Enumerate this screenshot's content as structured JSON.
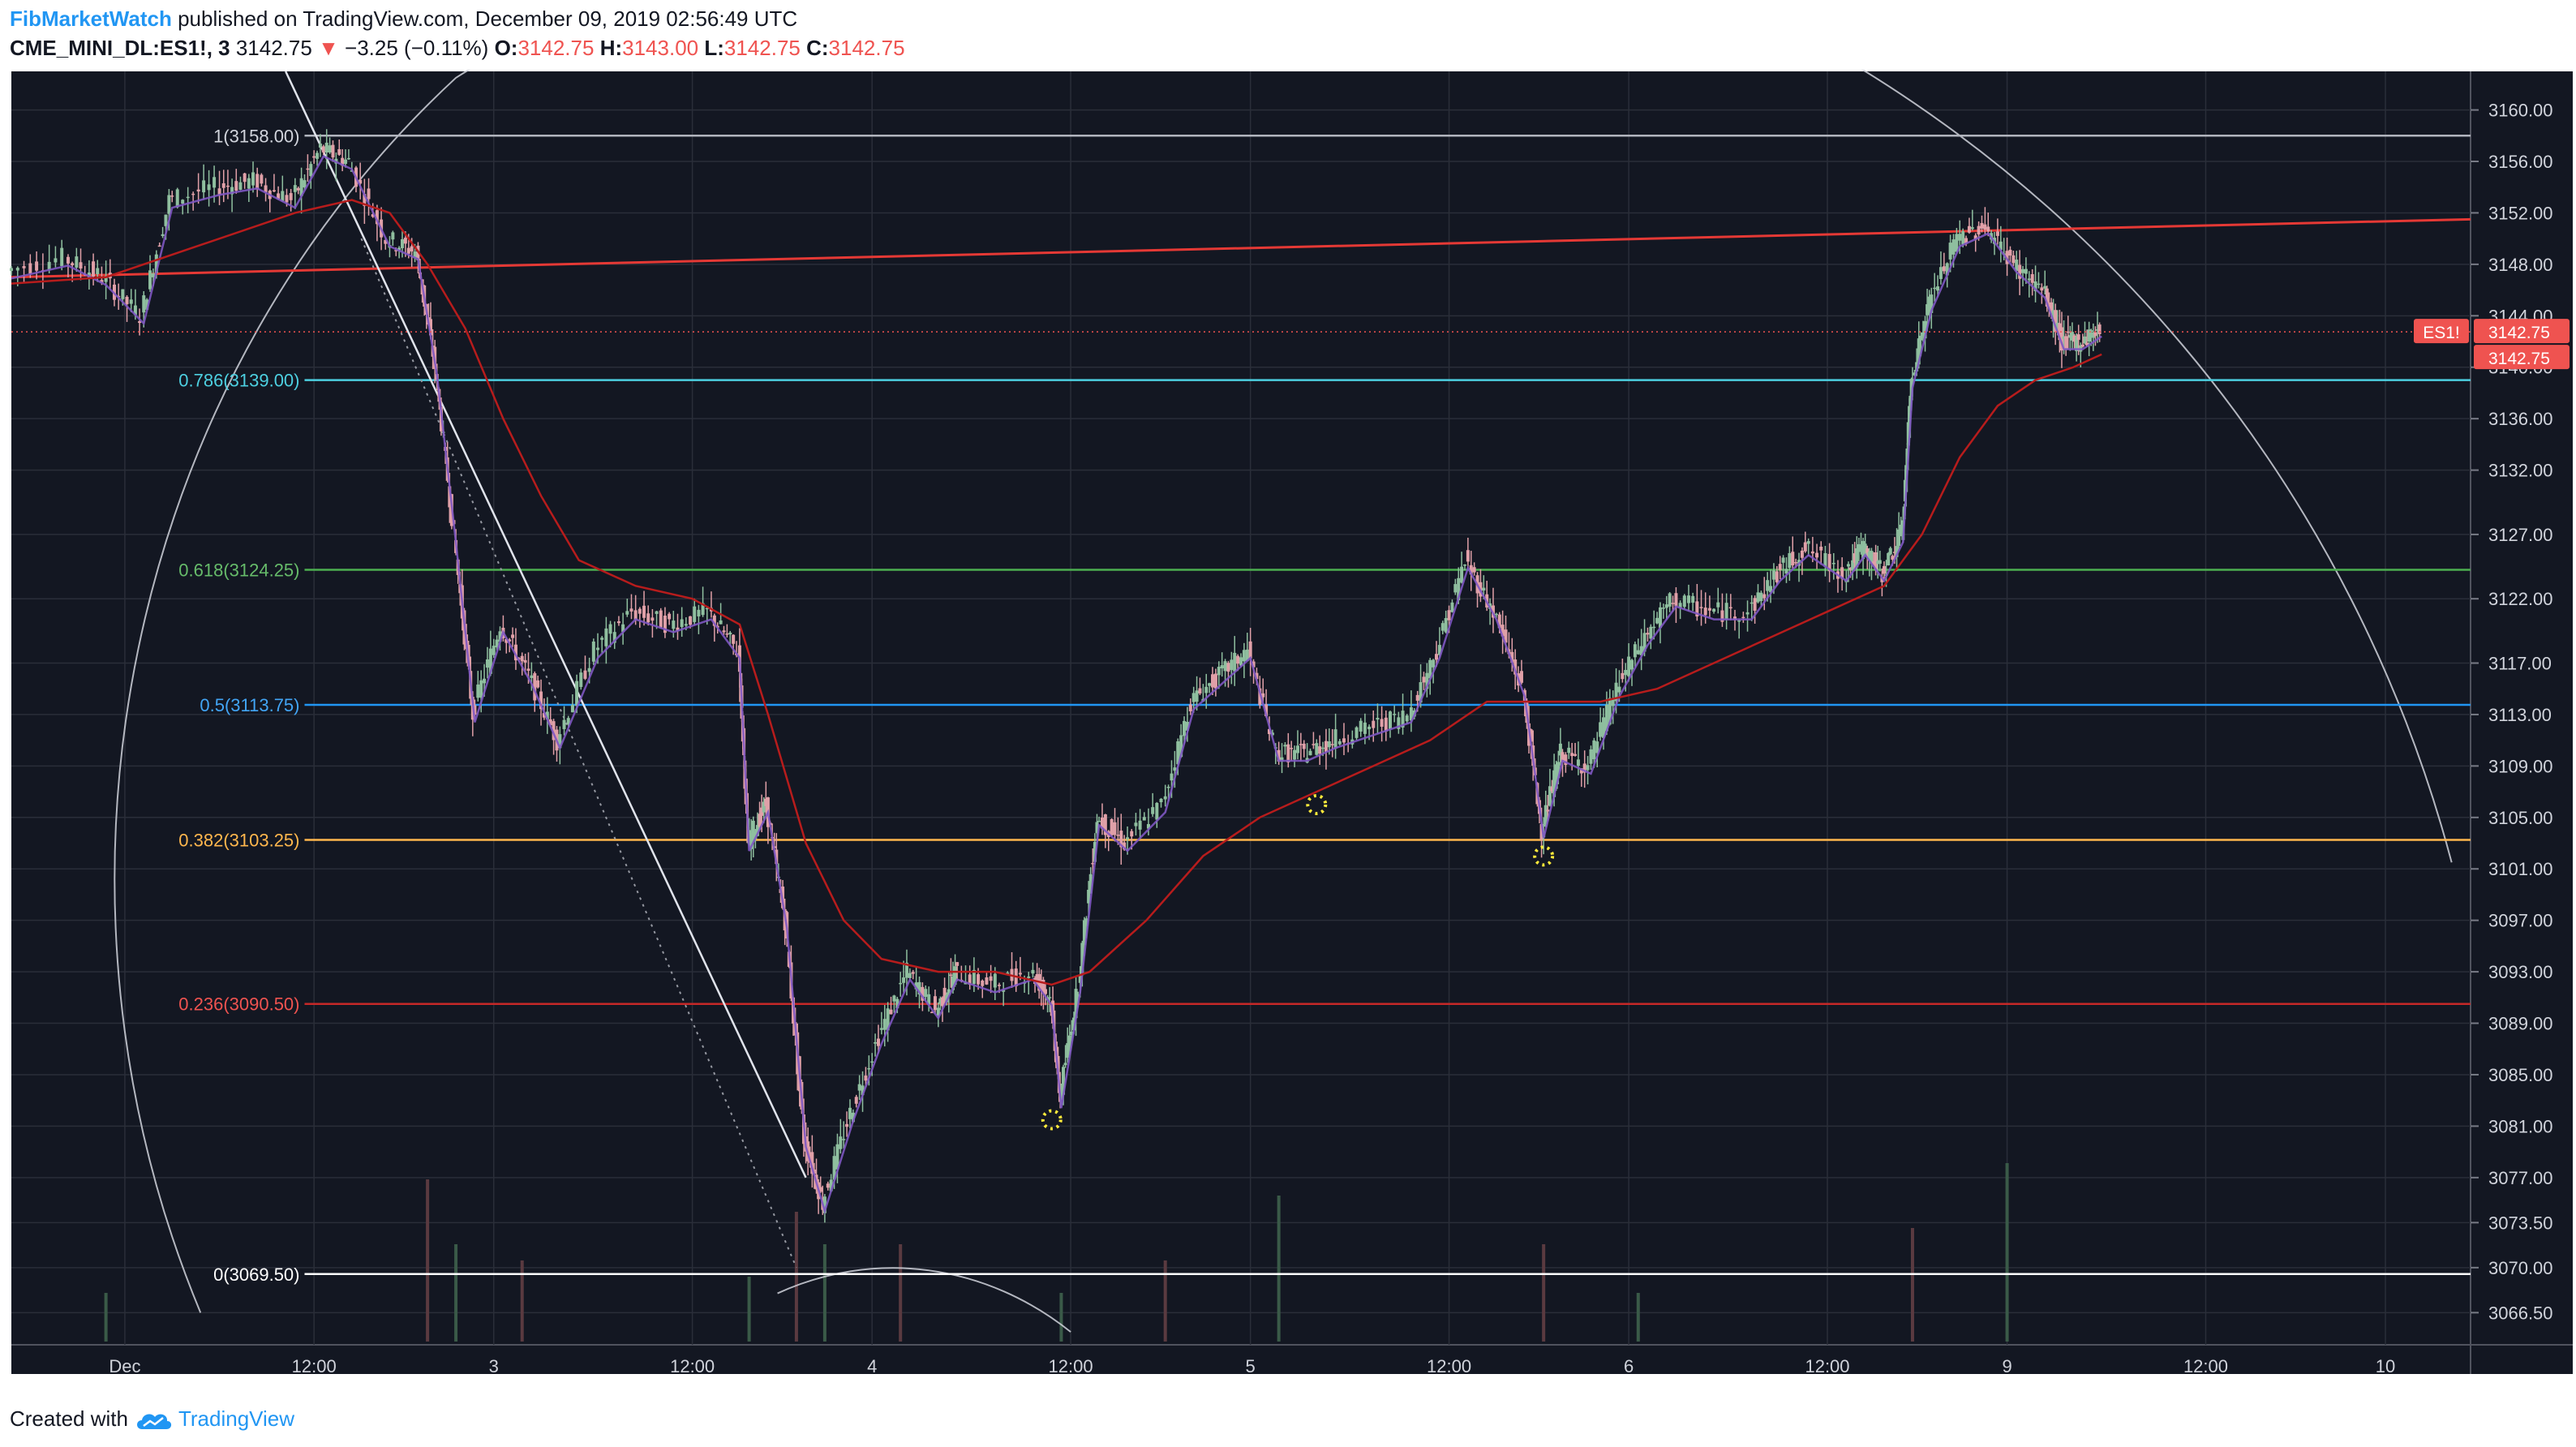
{
  "header": {
    "author": "FibMarketWatch",
    "published_text": "published on TradingView.com, December 09, 2019 02:56:49 UTC",
    "symbol": "CME_MINI_DL:ES1!, 3",
    "last_price": "3142.75",
    "change_arrow": "▼",
    "change_text": "−3.25 (−0.11%)",
    "open_label": "O:",
    "open": "3142.75",
    "high_label": "H:",
    "high": "3143.00",
    "low_label": "L:",
    "low": "3142.75",
    "close_label": "C:",
    "close": "3142.75"
  },
  "footer": {
    "created_with": "Created with",
    "brand": "TradingView"
  },
  "colors": {
    "background": "#131722",
    "grid": "#2a2e39",
    "axis_text": "#d1d4dc",
    "candle_up": "#8fbf9f",
    "candle_down": "#e0a0a8",
    "ema_red": "#b71c1c",
    "ema_purple": "#7e57c2",
    "trendline_red": "#e53935",
    "price_tag": "#ef5350",
    "marker_yellow": "#ffeb3b",
    "arc_white": "#d1d4dc"
  },
  "chart_data": {
    "type": "candlestick",
    "title": "",
    "ylim": [
      3064.0,
      3163.0
    ],
    "ylabel": "",
    "xlabel": "",
    "y_ticks": [
      "3160.00",
      "3156.00",
      "3152.00",
      "3148.00",
      "3144.00",
      "3140.00",
      "3136.00",
      "3132.00",
      "3127.00",
      "3122.00",
      "3117.00",
      "3113.00",
      "3109.00",
      "3105.00",
      "3101.00",
      "3097.00",
      "3093.00",
      "3089.00",
      "3085.00",
      "3081.00",
      "3077.00",
      "3073.50",
      "3070.00",
      "3066.50"
    ],
    "y_tick_values": [
      3160,
      3156,
      3152,
      3148,
      3144,
      3140,
      3136,
      3132,
      3127,
      3122,
      3117,
      3113,
      3109,
      3105,
      3101,
      3097,
      3093,
      3089,
      3085,
      3081,
      3077,
      3073.5,
      3070,
      3066.5
    ],
    "x_ticks": [
      {
        "label": "Dec",
        "t": 0.6
      },
      {
        "label": "12:00",
        "t": 1.6
      },
      {
        "label": "3",
        "t": 2.55
      },
      {
        "label": "12:00",
        "t": 3.6
      },
      {
        "label": "4",
        "t": 4.55
      },
      {
        "label": "12:00",
        "t": 5.6
      },
      {
        "label": "5",
        "t": 6.55
      },
      {
        "label": "12:00",
        "t": 7.6
      },
      {
        "label": "6",
        "t": 8.55
      },
      {
        "label": "12:00",
        "t": 9.6
      },
      {
        "label": "9",
        "t": 10.55
      },
      {
        "label": "12:00",
        "t": 11.6
      },
      {
        "label": "10",
        "t": 12.55
      }
    ],
    "x_range": [
      0,
      13.0
    ],
    "current_price": 3142.75,
    "symbol_tag": "ES1!",
    "price_tag_values": [
      "3142.75",
      "3142.75"
    ],
    "fib_levels": [
      {
        "label": "1(3158.00)",
        "value": 3158.0,
        "color": "#b2b5be",
        "text_color": "#d1d4dc"
      },
      {
        "label": "0.786(3139.00)",
        "value": 3139.0,
        "color": "#4dd0e1",
        "text_color": "#4dd0e1"
      },
      {
        "label": "0.618(3124.25)",
        "value": 3124.25,
        "color": "#4caf50",
        "text_color": "#66bb6a"
      },
      {
        "label": "0.5(3113.75)",
        "value": 3113.75,
        "color": "#2196f3",
        "text_color": "#42a5f5"
      },
      {
        "label": "0.382(3103.25)",
        "value": 3103.25,
        "color": "#ffb74d",
        "text_color": "#ffb74d"
      },
      {
        "label": "0.236(3090.50)",
        "value": 3090.5,
        "color": "#c62828",
        "text_color": "#ef5350"
      },
      {
        "label": "0(3069.50)",
        "value": 3069.5,
        "color": "#ffffff",
        "text_color": "#ffffff"
      }
    ],
    "price_path": [
      [
        0.0,
        3147.5
      ],
      [
        0.3,
        3148.5
      ],
      [
        0.5,
        3147
      ],
      [
        0.7,
        3144
      ],
      [
        0.85,
        3153
      ],
      [
        1.1,
        3154
      ],
      [
        1.3,
        3154.5
      ],
      [
        1.5,
        3153
      ],
      [
        1.65,
        3157
      ],
      [
        1.8,
        3156
      ],
      [
        2.0,
        3150
      ],
      [
        2.15,
        3149
      ],
      [
        2.25,
        3140
      ],
      [
        2.35,
        3127
      ],
      [
        2.45,
        3113
      ],
      [
        2.6,
        3120
      ],
      [
        2.75,
        3116
      ],
      [
        2.9,
        3111
      ],
      [
        3.1,
        3118
      ],
      [
        3.3,
        3121
      ],
      [
        3.5,
        3120
      ],
      [
        3.7,
        3121
      ],
      [
        3.85,
        3118
      ],
      [
        3.9,
        3103
      ],
      [
        4.0,
        3106
      ],
      [
        4.1,
        3097
      ],
      [
        4.2,
        3080
      ],
      [
        4.3,
        3075
      ],
      [
        4.45,
        3082
      ],
      [
        4.6,
        3088
      ],
      [
        4.75,
        3093
      ],
      [
        4.9,
        3090
      ],
      [
        5.0,
        3093
      ],
      [
        5.2,
        3092
      ],
      [
        5.4,
        3093
      ],
      [
        5.5,
        3091
      ],
      [
        5.55,
        3083
      ],
      [
        5.65,
        3092
      ],
      [
        5.75,
        3105
      ],
      [
        5.9,
        3103
      ],
      [
        6.1,
        3106
      ],
      [
        6.25,
        3114
      ],
      [
        6.4,
        3116
      ],
      [
        6.55,
        3118
      ],
      [
        6.7,
        3110
      ],
      [
        6.85,
        3110
      ],
      [
        7.0,
        3111
      ],
      [
        7.2,
        3112
      ],
      [
        7.4,
        3113
      ],
      [
        7.55,
        3118
      ],
      [
        7.7,
        3125
      ],
      [
        7.85,
        3121
      ],
      [
        8.0,
        3115
      ],
      [
        8.1,
        3104
      ],
      [
        8.2,
        3110
      ],
      [
        8.35,
        3109
      ],
      [
        8.5,
        3115
      ],
      [
        8.65,
        3119
      ],
      [
        8.8,
        3122
      ],
      [
        9.0,
        3121
      ],
      [
        9.2,
        3121
      ],
      [
        9.35,
        3124
      ],
      [
        9.5,
        3126
      ],
      [
        9.7,
        3124
      ],
      [
        9.8,
        3126
      ],
      [
        9.9,
        3124
      ],
      [
        10.0,
        3127
      ],
      [
        10.05,
        3139
      ],
      [
        10.15,
        3145
      ],
      [
        10.3,
        3150
      ],
      [
        10.45,
        3151
      ],
      [
        10.6,
        3148
      ],
      [
        10.75,
        3146
      ],
      [
        10.85,
        3142
      ],
      [
        10.95,
        3142
      ],
      [
        11.05,
        3143
      ]
    ],
    "ema_red_path": [
      [
        0.0,
        3146.5
      ],
      [
        0.5,
        3147
      ],
      [
        1.0,
        3149.5
      ],
      [
        1.5,
        3152
      ],
      [
        1.8,
        3153
      ],
      [
        2.0,
        3152
      ],
      [
        2.2,
        3148
      ],
      [
        2.4,
        3143
      ],
      [
        2.6,
        3136
      ],
      [
        2.8,
        3130
      ],
      [
        3.0,
        3125
      ],
      [
        3.3,
        3123
      ],
      [
        3.6,
        3122
      ],
      [
        3.85,
        3120
      ],
      [
        4.0,
        3113
      ],
      [
        4.2,
        3103
      ],
      [
        4.4,
        3097
      ],
      [
        4.6,
        3094
      ],
      [
        4.9,
        3093
      ],
      [
        5.2,
        3093
      ],
      [
        5.5,
        3092
      ],
      [
        5.7,
        3093
      ],
      [
        6.0,
        3097
      ],
      [
        6.3,
        3102
      ],
      [
        6.6,
        3105
      ],
      [
        6.9,
        3107
      ],
      [
        7.2,
        3109
      ],
      [
        7.5,
        3111
      ],
      [
        7.8,
        3114
      ],
      [
        8.1,
        3114
      ],
      [
        8.4,
        3114
      ],
      [
        8.7,
        3115
      ],
      [
        9.0,
        3117
      ],
      [
        9.3,
        3119
      ],
      [
        9.6,
        3121
      ],
      [
        9.9,
        3123
      ],
      [
        10.1,
        3127
      ],
      [
        10.3,
        3133
      ],
      [
        10.5,
        3137
      ],
      [
        10.7,
        3139
      ],
      [
        10.9,
        3140
      ],
      [
        11.05,
        3141
      ]
    ],
    "trend_line": {
      "from": [
        0.0,
        3147.0
      ],
      "to": [
        13.0,
        3151.5
      ],
      "color": "#e53935"
    },
    "diagonal_line": {
      "from": [
        1.45,
        3163
      ],
      "to": [
        4.2,
        3077
      ]
    },
    "dotted_line": {
      "from": [
        1.85,
        3150
      ],
      "to": [
        4.15,
        3070
      ]
    },
    "markers": [
      [
        5.5,
        3081.5
      ],
      [
        6.9,
        3106
      ],
      [
        8.1,
        3102
      ]
    ],
    "volume": [
      {
        "t": 0.5,
        "v": 0.15
      },
      {
        "t": 2.2,
        "v": 0.5
      },
      {
        "t": 2.35,
        "v": 0.3
      },
      {
        "t": 2.7,
        "v": 0.25
      },
      {
        "t": 3.9,
        "v": 0.2
      },
      {
        "t": 4.15,
        "v": 0.4
      },
      {
        "t": 4.3,
        "v": 0.3
      },
      {
        "t": 4.7,
        "v": 0.3
      },
      {
        "t": 5.55,
        "v": 0.15
      },
      {
        "t": 6.1,
        "v": 0.25
      },
      {
        "t": 6.7,
        "v": 0.45
      },
      {
        "t": 8.1,
        "v": 0.3
      },
      {
        "t": 8.6,
        "v": 0.15
      },
      {
        "t": 10.05,
        "v": 0.35
      },
      {
        "t": 10.55,
        "v": 0.55
      }
    ]
  }
}
